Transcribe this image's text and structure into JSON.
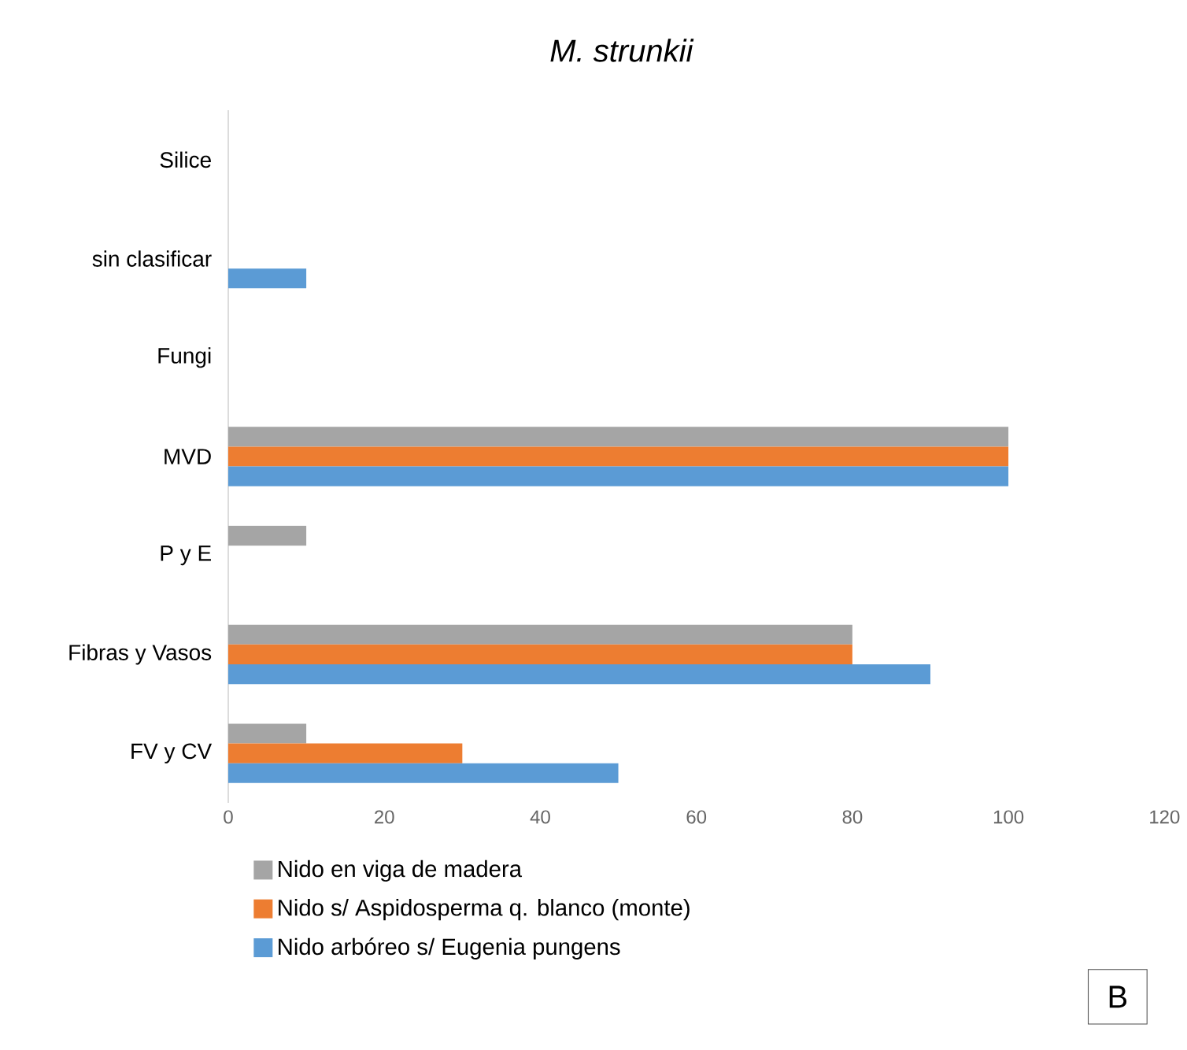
{
  "chart_data": {
    "type": "bar",
    "orientation": "horizontal",
    "title": "M. strunkii",
    "categories": [
      "Silice",
      "sin clasificar",
      "Fungi",
      "MVD",
      "P y E",
      "Fibras y Vasos",
      "FV y CV"
    ],
    "series": [
      {
        "name": "Nido en viga de madera",
        "color": "#a5a5a5",
        "values": [
          0,
          0,
          0,
          100,
          10,
          80,
          10
        ]
      },
      {
        "name": "Nido s/ Aspidosperma q. blanco (monte)",
        "color": "#ed7d31",
        "values": [
          0,
          0,
          0,
          100,
          0,
          80,
          30
        ]
      },
      {
        "name": "Nido arbóreo s/ Eugenia pungens",
        "color": "#5b9bd5",
        "values": [
          0,
          10,
          0,
          100,
          0,
          90,
          50
        ]
      }
    ],
    "xlim": [
      0,
      120
    ],
    "xticks": [
      0,
      20,
      40,
      60,
      80,
      100,
      120
    ],
    "grid": false,
    "legend": "bottom",
    "annotations": [
      "B"
    ]
  }
}
